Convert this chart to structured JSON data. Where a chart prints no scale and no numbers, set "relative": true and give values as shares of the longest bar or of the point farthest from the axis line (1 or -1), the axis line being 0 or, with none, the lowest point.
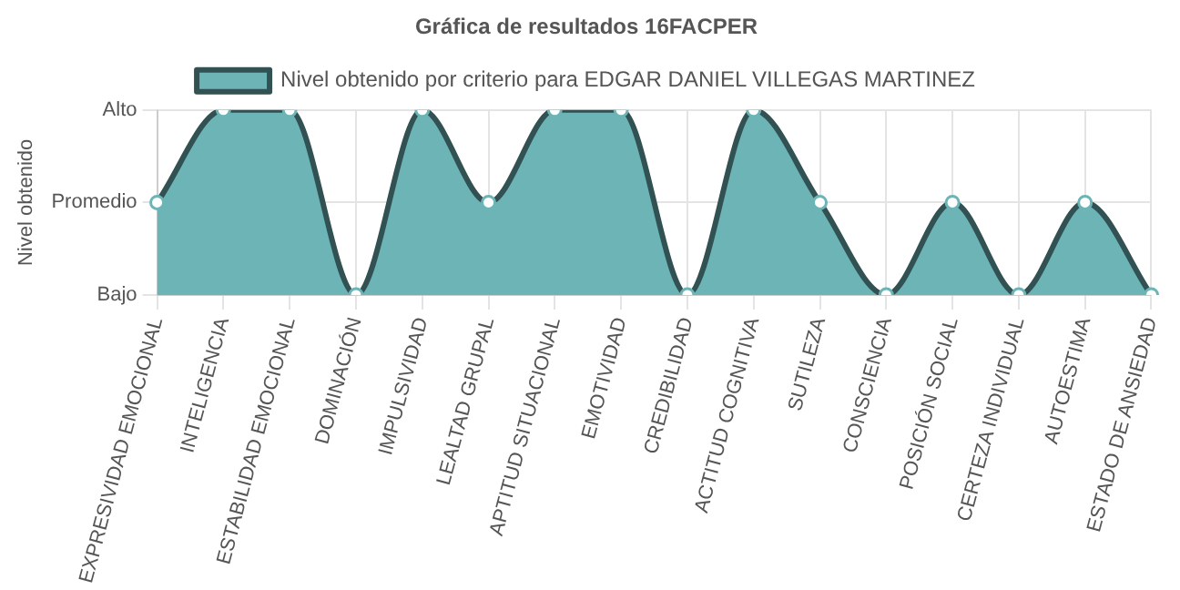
{
  "chart_data": {
    "type": "area",
    "title": "Gráfica de resultados 16FACPER",
    "ylabel": "Nivel obtenido",
    "categories": [
      "EXPRESIVIDAD EMOCIONAL",
      "INTELIGENCIA",
      "ESTABILIDAD EMOCIONAL",
      "DOMINACIÓN",
      "IMPULSIVIDAD",
      "LEALTAD GRUPAL",
      "APTITUD SITUACIONAL",
      "EMOTIVIDAD",
      "CREDIBILIDAD",
      "ACTITUD COGNITIVA",
      "SUTILEZA",
      "CONSCIENCIA",
      "POSICIÓN SOCIAL",
      "CERTEZA INDIVIDUAL",
      "AUTOESTIMA",
      "ESTADO DE ANSIEDAD"
    ],
    "series": [
      {
        "name": "Nivel obtenido por criterio para EDGAR DANIEL VILLEGAS MARTINEZ",
        "color": "#6db4b6",
        "values": [
          0.5,
          1,
          1,
          0,
          1,
          0.5,
          1,
          1,
          0,
          1,
          0.5,
          0,
          0.5,
          0,
          0.5,
          0
        ]
      }
    ],
    "relative": true,
    "y_categories": [
      "Alto",
      "Promedio",
      "Bajo"
    ],
    "grid": true,
    "legend": "top",
    "marker": "circle"
  }
}
